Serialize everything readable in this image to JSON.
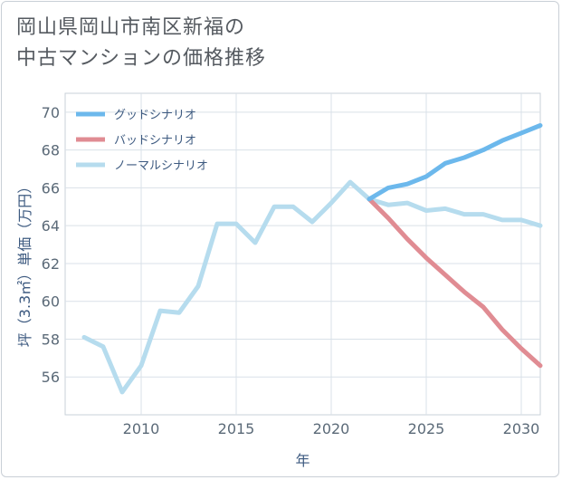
{
  "title_lines": [
    "岡山県岡山市南区新福の",
    "中古マンションの価格推移"
  ],
  "chart_data": {
    "type": "line",
    "xlabel": "年",
    "ylabel": "坪（3.3㎡）単価（万円）",
    "xlim": [
      2006,
      2031
    ],
    "ylim": [
      54,
      71
    ],
    "xticks": [
      2010,
      2015,
      2020,
      2025,
      2030
    ],
    "yticks": [
      56,
      58,
      60,
      62,
      64,
      66,
      68,
      70
    ],
    "grid": true,
    "legend_position": "top-left",
    "series": [
      {
        "name": "グッドシナリオ",
        "color": "#6cb8ec",
        "x": [
          2022,
          2023,
          2024,
          2025,
          2026,
          2027,
          2028,
          2029,
          2030,
          2031
        ],
        "y": [
          65.4,
          66.0,
          66.2,
          66.6,
          67.3,
          67.6,
          68.0,
          68.5,
          68.9,
          69.3
        ]
      },
      {
        "name": "バッドシナリオ",
        "color": "#e08c93",
        "x": [
          2022,
          2023,
          2024,
          2025,
          2026,
          2027,
          2028,
          2029,
          2030,
          2031
        ],
        "y": [
          65.4,
          64.4,
          63.3,
          62.3,
          61.4,
          60.5,
          59.7,
          58.5,
          57.5,
          56.6
        ]
      },
      {
        "name": "ノーマルシナリオ",
        "color": "#b6dcee",
        "x": [
          2007,
          2008,
          2009,
          2010,
          2011,
          2012,
          2013,
          2014,
          2015,
          2016,
          2017,
          2018,
          2019,
          2020,
          2021,
          2022,
          2023,
          2024,
          2025,
          2026,
          2027,
          2028,
          2029,
          2030,
          2031
        ],
        "y": [
          58.1,
          57.6,
          55.2,
          56.6,
          59.5,
          59.4,
          60.8,
          64.1,
          64.1,
          63.1,
          65.0,
          65.0,
          64.2,
          65.2,
          66.3,
          65.4,
          65.1,
          65.2,
          64.8,
          64.9,
          64.6,
          64.6,
          64.3,
          64.3,
          64.0
        ]
      }
    ]
  }
}
